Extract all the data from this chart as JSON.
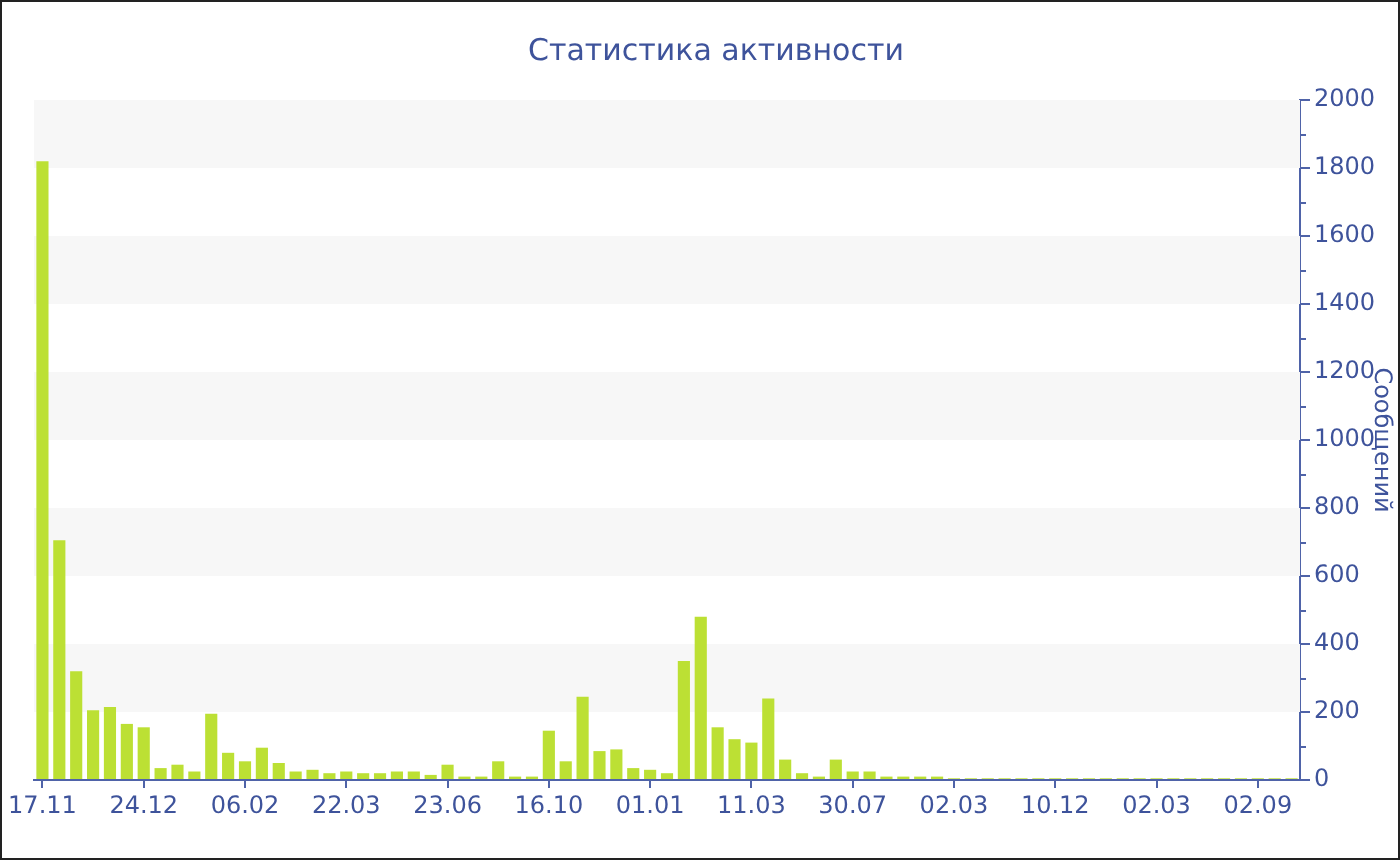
{
  "chart_data": {
    "type": "bar",
    "title": "Статистика активности",
    "ylabel": "Сообщений",
    "categories": [
      "17.11",
      null,
      null,
      null,
      null,
      null,
      "24.12",
      null,
      null,
      null,
      null,
      null,
      "06.02",
      null,
      null,
      null,
      null,
      null,
      "22.03",
      null,
      null,
      null,
      null,
      null,
      "23.06",
      null,
      null,
      null,
      null,
      null,
      "16.10",
      null,
      null,
      null,
      null,
      null,
      "01.01",
      null,
      null,
      null,
      null,
      null,
      "11.03",
      null,
      null,
      null,
      null,
      null,
      "30.07",
      null,
      null,
      null,
      null,
      null,
      "02.03",
      null,
      null,
      null,
      null,
      null,
      "10.12",
      null,
      null,
      null,
      null,
      null,
      "02.03",
      null,
      null,
      null,
      null,
      null,
      "02.09",
      null,
      null
    ],
    "series": [
      {
        "color": "#bce034",
        "values": [
          1820,
          705,
          320,
          205,
          215,
          165,
          155,
          35,
          45,
          25,
          195,
          80,
          55,
          95,
          50,
          25,
          30,
          20,
          25,
          20,
          20,
          25,
          25,
          15,
          45,
          10,
          10,
          55,
          10,
          10,
          145,
          55,
          245,
          85,
          90,
          35,
          30,
          20,
          350,
          480,
          155,
          120,
          110,
          240,
          60,
          20,
          10,
          60,
          25,
          25,
          10,
          10,
          10,
          10,
          5,
          5,
          5,
          5,
          5,
          5,
          5,
          5,
          5,
          5,
          5,
          5,
          5,
          5,
          5,
          5,
          5,
          5,
          5,
          5,
          5
        ]
      }
    ],
    "ylim": [
      0,
      2000
    ],
    "yticks": [
      0,
      200,
      400,
      600,
      800,
      1000,
      1200,
      1400,
      1600,
      1800,
      2000
    ],
    "bands": [
      {
        "axis": "y",
        "from": 200,
        "to": 400,
        "color": "#f7f7f7"
      },
      {
        "axis": "y",
        "from": 600,
        "to": 800,
        "color": "#f7f7f7"
      },
      {
        "axis": "y",
        "from": 1000,
        "to": 1200,
        "color": "#f7f7f7"
      },
      {
        "axis": "y",
        "from": 1400,
        "to": 1600,
        "color": "#f7f7f7"
      },
      {
        "axis": "y",
        "from": 1800,
        "to": 2000,
        "color": "#f7f7f7"
      }
    ]
  }
}
